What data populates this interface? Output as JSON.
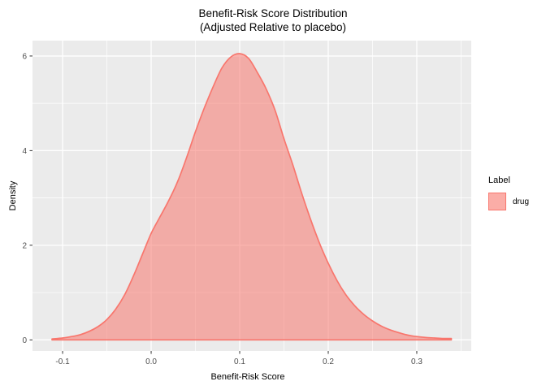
{
  "title": {
    "line1": "Benefit-Risk Score Distribution",
    "line2": "(Adjusted Relative to placebo)"
  },
  "chart_data": {
    "type": "area",
    "subtype": "density",
    "title": "Benefit-Risk Score Distribution",
    "subtitle": "(Adjusted Relative to placebo)",
    "xlabel": "Benefit-Risk Score",
    "ylabel": "Density",
    "xlim": [
      -0.134,
      0.3615
    ],
    "ylim": [
      -0.235,
      6.325
    ],
    "x_ticks": [
      -0.1,
      0.0,
      0.1,
      0.2,
      0.3
    ],
    "x_tick_labels": [
      "-0.1",
      "0.0",
      "0.1",
      "0.2",
      "0.3"
    ],
    "x_minor_ticks": [
      -0.05,
      0.05,
      0.15,
      0.25,
      0.35
    ],
    "y_ticks": [
      0,
      2,
      4,
      6
    ],
    "y_tick_labels": [
      "0",
      "2",
      "4",
      "6"
    ],
    "y_minor_ticks": [
      1,
      3,
      5
    ],
    "grid": true,
    "legend_position": "right",
    "legend": {
      "title": "Label",
      "items": [
        {
          "label": "drug",
          "fill": "#F8766D",
          "fill_alpha": 0.55,
          "stroke": "#F8766D"
        }
      ]
    },
    "series": [
      {
        "name": "drug",
        "points": [
          [
            -0.112,
            0.02
          ],
          [
            -0.1,
            0.04
          ],
          [
            -0.09,
            0.07
          ],
          [
            -0.08,
            0.11
          ],
          [
            -0.07,
            0.18
          ],
          [
            -0.06,
            0.28
          ],
          [
            -0.05,
            0.43
          ],
          [
            -0.04,
            0.65
          ],
          [
            -0.03,
            0.95
          ],
          [
            -0.02,
            1.35
          ],
          [
            -0.01,
            1.8
          ],
          [
            0.0,
            2.25
          ],
          [
            0.01,
            2.6
          ],
          [
            0.02,
            2.95
          ],
          [
            0.03,
            3.35
          ],
          [
            0.04,
            3.85
          ],
          [
            0.05,
            4.4
          ],
          [
            0.06,
            4.9
          ],
          [
            0.07,
            5.35
          ],
          [
            0.08,
            5.75
          ],
          [
            0.09,
            5.98
          ],
          [
            0.1,
            6.05
          ],
          [
            0.11,
            5.95
          ],
          [
            0.12,
            5.65
          ],
          [
            0.13,
            5.3
          ],
          [
            0.14,
            4.85
          ],
          [
            0.15,
            4.25
          ],
          [
            0.16,
            3.7
          ],
          [
            0.17,
            3.1
          ],
          [
            0.18,
            2.55
          ],
          [
            0.19,
            2.05
          ],
          [
            0.2,
            1.62
          ],
          [
            0.21,
            1.25
          ],
          [
            0.22,
            0.95
          ],
          [
            0.23,
            0.72
          ],
          [
            0.24,
            0.54
          ],
          [
            0.25,
            0.4
          ],
          [
            0.26,
            0.29
          ],
          [
            0.27,
            0.21
          ],
          [
            0.28,
            0.15
          ],
          [
            0.29,
            0.1
          ],
          [
            0.3,
            0.07
          ],
          [
            0.31,
            0.05
          ],
          [
            0.32,
            0.04
          ],
          [
            0.33,
            0.03
          ],
          [
            0.339,
            0.03
          ]
        ]
      }
    ],
    "colors": {
      "panel_bg": "#EBEBEB",
      "grid": "#FFFFFF",
      "area_stroke": "#F8766D",
      "tick_mark": "#333333",
      "tick_label": "#4D4D4D",
      "title_text": "#000000"
    }
  }
}
